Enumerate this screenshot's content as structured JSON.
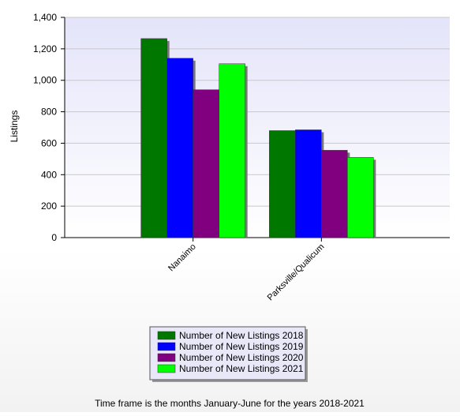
{
  "chart_data": {
    "type": "bar",
    "y_label": "Listings",
    "categories": [
      "Nanaimo",
      "Parksville/Qualicum"
    ],
    "series": [
      {
        "name": "Number of New Listings 2018",
        "color": "#007800",
        "values": [
          1265,
          680
        ]
      },
      {
        "name": "Number of New Listings 2019",
        "color": "#0000ff",
        "values": [
          1140,
          685
        ]
      },
      {
        "name": "Number of New Listings 2020",
        "color": "#800080",
        "values": [
          940,
          555
        ]
      },
      {
        "name": "Number of New Listings 2021",
        "color": "#00ff00",
        "values": [
          1105,
          510
        ]
      }
    ],
    "ylim": [
      0,
      1400
    ],
    "yticks": [
      0,
      200,
      400,
      600,
      800,
      {
        "value": 1000,
        "label": "1,000"
      },
      {
        "value": 1200,
        "label": "1,200"
      },
      {
        "value": 1400,
        "label": "1,400"
      }
    ],
    "grid": true,
    "legend": "bottom",
    "footnote": "Time frame is the months January-June for the years 2018-2021"
  }
}
